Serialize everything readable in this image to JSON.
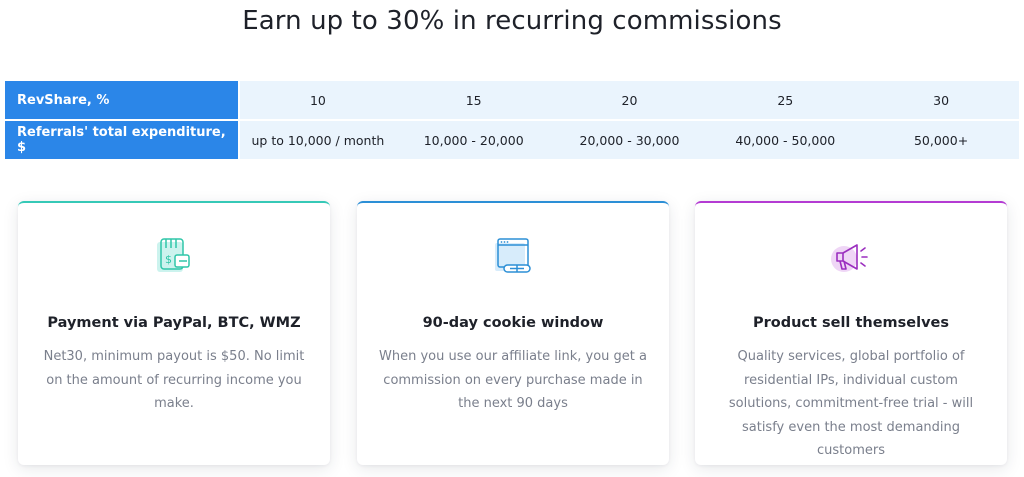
{
  "title": "Earn up to 30% in recurring commissions",
  "table": {
    "row1_label": "RevShare, %",
    "row1_values": [
      "10",
      "15",
      "20",
      "25",
      "30"
    ],
    "row2_label": "Referrals' total expenditure, $",
    "row2_values": [
      "up to 10,000 / month",
      "10,000 - 20,000",
      "20,000 - 30,000",
      "40,000 - 50,000",
      "50,000+"
    ]
  },
  "cards": [
    {
      "icon": "wallet-money-icon",
      "title": "Payment via PayPal, BTC, WMZ",
      "text": "Net30, minimum payout is $50. No limit on the amount of recurring income you make."
    },
    {
      "icon": "browser-window-icon",
      "title": "90-day cookie window",
      "text": "When you use our affiliate link, you get a commission on every purchase made in the next 90 days"
    },
    {
      "icon": "megaphone-icon",
      "title": "Product sell themselves",
      "text": "Quality services, global portfolio of residential IPs, individual custom solutions, commitment-free trial - will satisfy even the most demanding customers"
    }
  ],
  "colors": {
    "table_header": "#2b86e8",
    "table_cells": "#eaf4fd",
    "card1_accent": "#36c9b7",
    "card2_accent": "#2c8fd6",
    "card3_accent": "#b43bd3"
  }
}
